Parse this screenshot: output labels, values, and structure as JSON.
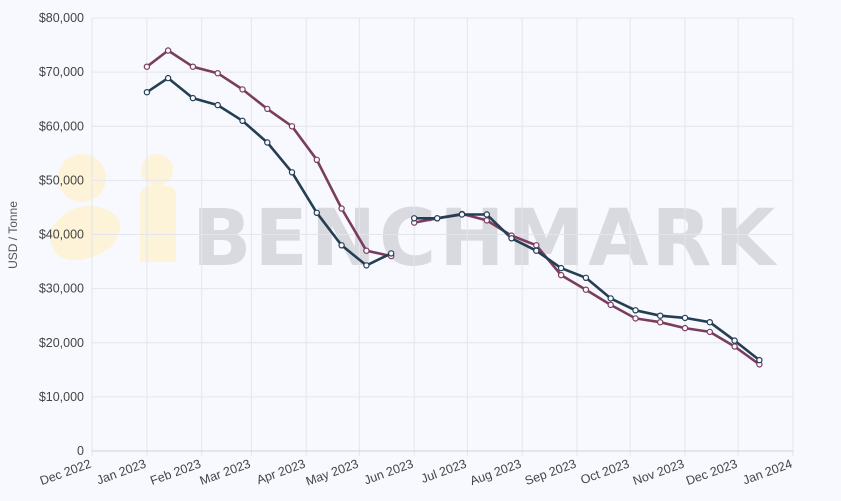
{
  "watermark": {
    "text": "BENCHMARK"
  },
  "colors": {
    "background": "#f8f9fe",
    "grid": "#e4e5ec",
    "series_1": "#7b3d5d",
    "series_2": "#243e52",
    "watermark_logo": "#fdf3d8"
  },
  "chart_data": {
    "type": "line",
    "xlabel": "",
    "ylabel": "USD / Tonne",
    "ylim": [
      0,
      80000
    ],
    "xlim": [
      "2022-12-01",
      "2024-01-01"
    ],
    "y_ticks": [
      "0",
      "$10,000",
      "$20,000",
      "$30,000",
      "$40,000",
      "$50,000",
      "$60,000",
      "$70,000",
      "$80,000"
    ],
    "x_ticks": [
      "Dec 2022",
      "Jan 2023",
      "Feb 2023",
      "Mar 2023",
      "Apr 2023",
      "May 2023",
      "Jun 2023",
      "Jul 2023",
      "Aug 2023",
      "Sep 2023",
      "Oct 2023",
      "Nov 2023",
      "Dec 2023",
      "Jan 2024"
    ],
    "grid": true,
    "legend": "none",
    "x": [
      "2023-01-01",
      "2023-01-13",
      "2023-01-27",
      "2023-02-10",
      "2023-02-24",
      "2023-03-10",
      "2023-03-24",
      "2023-04-07",
      "2023-04-21",
      "2023-05-05",
      "2023-05-19",
      "2023-05-31",
      "2023-06-01",
      "2023-06-14",
      "2023-06-28",
      "2023-07-12",
      "2023-07-26",
      "2023-08-09",
      "2023-08-23",
      "2023-09-06",
      "2023-09-20",
      "2023-10-04",
      "2023-10-18",
      "2023-11-01",
      "2023-11-15",
      "2023-11-29",
      "2023-12-13",
      "2023-12-27"
    ],
    "series": [
      {
        "values": [
          71000,
          74000,
          71000,
          69800,
          66800,
          63200,
          60000,
          53800,
          44800,
          37000,
          36000,
          null,
          42200,
          43000,
          43800,
          42600,
          39800,
          38000,
          32500,
          29800,
          27000,
          24500,
          23800,
          22700,
          22000,
          19300,
          16000,
          null
        ]
      },
      {
        "values": [
          66300,
          68900,
          65200,
          63900,
          61000,
          57000,
          51500,
          44000,
          38000,
          34300,
          36500,
          null,
          43000,
          43000,
          43700,
          43700,
          39300,
          37000,
          33800,
          32000,
          28200,
          26000,
          25000,
          24600,
          23800,
          20400,
          16800,
          null
        ]
      }
    ]
  }
}
